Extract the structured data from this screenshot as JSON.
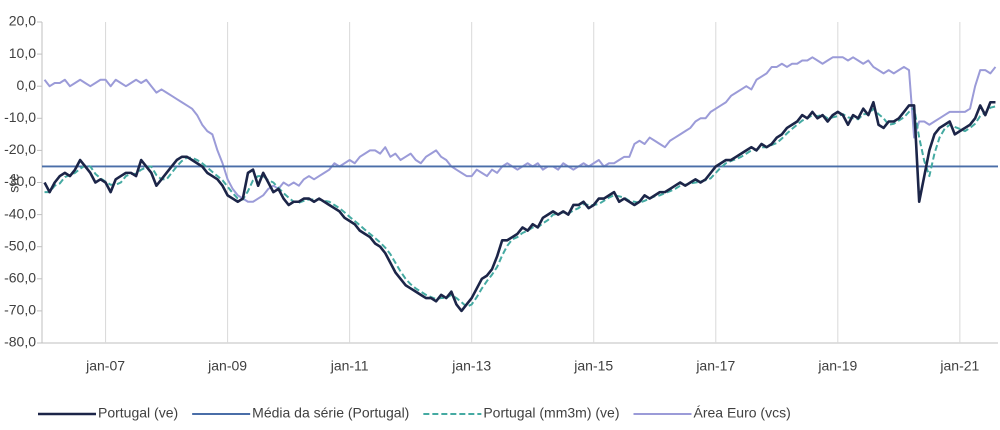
{
  "chart_data": {
    "type": "line",
    "y_label": "sre",
    "ylim": [
      -80,
      20
    ],
    "yticks": [
      {
        "value": -80,
        "label": "-80,0"
      },
      {
        "value": -70,
        "label": "-70,0"
      },
      {
        "value": -60,
        "label": "-60,0"
      },
      {
        "value": -50,
        "label": "-50,0"
      },
      {
        "value": -40,
        "label": "-40,0"
      },
      {
        "value": -30,
        "label": "-30,0"
      },
      {
        "value": -20,
        "label": "-20,0"
      },
      {
        "value": -10,
        "label": "-10,0"
      },
      {
        "value": 0,
        "label": "0,0"
      },
      {
        "value": 10,
        "label": "10,0"
      },
      {
        "value": 20,
        "label": "20,0"
      }
    ],
    "grid": true,
    "legend": "bottom",
    "categories": [
      null,
      null,
      null,
      null,
      null,
      null,
      null,
      null,
      null,
      null,
      null,
      null,
      "jan-07",
      null,
      null,
      null,
      null,
      null,
      null,
      null,
      null,
      null,
      null,
      null,
      null,
      null,
      null,
      null,
      null,
      null,
      null,
      null,
      null,
      null,
      null,
      null,
      "jan-09",
      null,
      null,
      null,
      null,
      null,
      null,
      null,
      null,
      null,
      null,
      null,
      null,
      null,
      null,
      null,
      null,
      null,
      null,
      null,
      null,
      null,
      null,
      null,
      "jan-11",
      null,
      null,
      null,
      null,
      null,
      null,
      null,
      null,
      null,
      null,
      null,
      null,
      null,
      null,
      null,
      null,
      null,
      null,
      null,
      null,
      null,
      null,
      null,
      "jan-13",
      null,
      null,
      null,
      null,
      null,
      null,
      null,
      null,
      null,
      null,
      null,
      null,
      null,
      null,
      null,
      null,
      null,
      null,
      null,
      null,
      null,
      null,
      null,
      "jan-15",
      null,
      null,
      null,
      null,
      null,
      null,
      null,
      null,
      null,
      null,
      null,
      null,
      null,
      null,
      null,
      null,
      null,
      null,
      null,
      null,
      null,
      null,
      null,
      "jan-17",
      null,
      null,
      null,
      null,
      null,
      null,
      null,
      null,
      null,
      null,
      null,
      null,
      null,
      null,
      null,
      null,
      null,
      null,
      null,
      null,
      null,
      null,
      null,
      "jan-19",
      null,
      null,
      null,
      null,
      null,
      null,
      null,
      null,
      null,
      null,
      null,
      null,
      null,
      null,
      null,
      null,
      null,
      null,
      null,
      null,
      null,
      null,
      null,
      "jan-21",
      null,
      null,
      null,
      null,
      null,
      null,
      null
    ],
    "series": [
      {
        "name": "Portugal (ve)",
        "color": "#1c2548",
        "dash": false,
        "values": [
          -30,
          -33,
          -30,
          -28,
          -27,
          -28,
          -26,
          -23,
          -25,
          -27,
          -30,
          -29,
          -30,
          -33,
          -29,
          -28,
          -27,
          -27,
          -28,
          -23,
          -25,
          -27,
          -31,
          -29,
          -27,
          -25,
          -23,
          -22,
          -22,
          -23,
          -24,
          -25,
          -27,
          -28,
          -29,
          -31,
          -34,
          -35,
          -36,
          -35,
          -27,
          -26,
          -31,
          -27,
          -30,
          -33,
          -32,
          -35,
          -37,
          -36,
          -36,
          -35,
          -35,
          -36,
          -35,
          -36,
          -37,
          -38,
          -39,
          -41,
          -42,
          -43,
          -45,
          -46,
          -47,
          -49,
          -50,
          -52,
          -55,
          -58,
          -60,
          -62,
          -63,
          -64,
          -65,
          -66,
          -66,
          -67,
          -65,
          -66,
          -64,
          -68,
          -70,
          -68,
          -66,
          -63,
          -60,
          -59,
          -57,
          -53,
          -48,
          -48,
          -47,
          -46,
          -44,
          -45,
          -43,
          -44,
          -41,
          -40,
          -39,
          -40,
          -39,
          -40,
          -37,
          -37,
          -36,
          -38,
          -37,
          -35,
          -35,
          -34,
          -33,
          -36,
          -35,
          -36,
          -37,
          -36,
          -34,
          -35,
          -34,
          -33,
          -33,
          -32,
          -31,
          -30,
          -31,
          -30,
          -29,
          -30,
          -29,
          -27,
          -25,
          -24,
          -23,
          -23,
          -22,
          -21,
          -20,
          -19,
          -20,
          -18,
          -19,
          -18,
          -16,
          -15,
          -13,
          -12,
          -11,
          -9,
          -10,
          -8,
          -10,
          -9,
          -11,
          -9,
          -8,
          -9,
          -12,
          -9,
          -10,
          -7,
          -9,
          -5,
          -12,
          -13,
          -11,
          -11,
          -10,
          -8,
          -6,
          -6,
          -36,
          -28,
          -20,
          -15,
          -13,
          -12,
          -11,
          -15,
          -14,
          -13,
          -12,
          -10,
          -6,
          -9,
          -5,
          -5
        ]
      },
      {
        "name": "Média da série (Portugal)",
        "color": "#4a6ea8",
        "value": -25
      },
      {
        "name": "Portugal (mm3m) (ve)",
        "color": "#45aaa2",
        "dash": true,
        "values": [
          -33,
          -33,
          -31,
          -30.3,
          -28.3,
          -27.7,
          -27,
          -25.7,
          -24.7,
          -25,
          -27.3,
          -28.7,
          -29.7,
          -30.7,
          -30.7,
          -30,
          -28,
          -27.3,
          -27.3,
          -26,
          -25.3,
          -25,
          -27.7,
          -29,
          -29,
          -27,
          -25,
          -23.3,
          -22.3,
          -22.3,
          -23,
          -24,
          -25.3,
          -26.7,
          -28,
          -29.3,
          -31.3,
          -33.3,
          -35,
          -35.3,
          -32.7,
          -29.3,
          -28,
          -28,
          -29.3,
          -30,
          -31.7,
          -33.3,
          -34.7,
          -36,
          -36.3,
          -35.7,
          -35.3,
          -35.3,
          -35.3,
          -35.7,
          -36,
          -37,
          -38,
          -39.3,
          -40.7,
          -42,
          -43.3,
          -44.7,
          -46,
          -47.3,
          -48.7,
          -50.3,
          -52.3,
          -55,
          -57.7,
          -60,
          -61.7,
          -63,
          -64,
          -65,
          -65.7,
          -66.3,
          -66,
          -66,
          -65,
          -66,
          -67.3,
          -68.7,
          -68,
          -65.7,
          -63,
          -60.7,
          -58.7,
          -56.3,
          -52.7,
          -49.7,
          -47.7,
          -47,
          -45.7,
          -45,
          -44,
          -44,
          -42.7,
          -41.7,
          -40,
          -39.7,
          -39.3,
          -39.7,
          -38.7,
          -38,
          -36.7,
          -37,
          -37,
          -36.7,
          -35.7,
          -34.7,
          -34,
          -34.3,
          -34.7,
          -35.7,
          -36,
          -36.3,
          -35.7,
          -35,
          -34.3,
          -34,
          -33.3,
          -32.7,
          -32,
          -31,
          -30.7,
          -30.3,
          -30,
          -29.7,
          -29.3,
          -28.7,
          -27,
          -25.3,
          -24,
          -23.3,
          -22.7,
          -22,
          -21,
          -20,
          -19.7,
          -19,
          -19,
          -18.3,
          -17.7,
          -16.3,
          -14.7,
          -13.3,
          -12,
          -10.7,
          -10,
          -9,
          -9.3,
          -9,
          -10,
          -9.7,
          -9.3,
          -8.7,
          -9.7,
          -10,
          -10.3,
          -8.7,
          -8.7,
          -7,
          -8.7,
          -10,
          -12,
          -11.7,
          -10.7,
          -9.7,
          -8,
          -6.7,
          -16,
          -23.3,
          -28,
          -21,
          -16,
          -13.3,
          -12,
          -12.7,
          -13.3,
          -14,
          -13,
          -11.7,
          -9.3,
          -8.3,
          -6.7,
          -6.3
        ]
      },
      {
        "name": "Área Euro (vcs)",
        "color": "#9b9bd8",
        "dash": false,
        "values": [
          2,
          0,
          1,
          1,
          2,
          0,
          1,
          2,
          1,
          0,
          1,
          2,
          2,
          0,
          2,
          1,
          0,
          1,
          2,
          1,
          2,
          0,
          -2,
          -1,
          -2,
          -3,
          -4,
          -5,
          -6,
          -7,
          -9,
          -12,
          -14,
          -15,
          -20,
          -24,
          -29,
          -32,
          -34,
          -35,
          -36,
          -36,
          -35,
          -34,
          -32,
          -31,
          -32,
          -30,
          -31,
          -30,
          -31,
          -29,
          -28,
          -29,
          -28,
          -27,
          -26,
          -24,
          -25,
          -24,
          -23,
          -24,
          -22,
          -21,
          -20,
          -20,
          -21,
          -19,
          -22,
          -21,
          -23,
          -22,
          -21,
          -23,
          -24,
          -22,
          -21,
          -20,
          -22,
          -23,
          -25,
          -26,
          -27,
          -28,
          -28,
          -26,
          -27,
          -28,
          -26,
          -27,
          -25,
          -24,
          -25,
          -26,
          -25,
          -24,
          -25,
          -24,
          -26,
          -25,
          -25,
          -26,
          -24,
          -25,
          -26,
          -25,
          -24,
          -25,
          -24,
          -23,
          -25,
          -24,
          -24,
          -23,
          -22,
          -22,
          -18,
          -17,
          -18,
          -16,
          -17,
          -18,
          -19,
          -17,
          -16,
          -15,
          -14,
          -13,
          -11,
          -10,
          -10,
          -8,
          -7,
          -6,
          -5,
          -3,
          -2,
          -1,
          0,
          -1,
          2,
          3,
          4,
          6,
          6,
          7,
          6,
          7,
          7,
          8,
          8,
          9,
          8,
          7,
          8,
          9,
          9,
          9,
          8,
          9,
          8,
          7,
          8,
          6,
          5,
          4,
          5,
          4,
          5,
          6,
          5,
          -16,
          -11,
          -11,
          -12,
          -11,
          -10,
          -9,
          -8,
          -8,
          -8,
          -8,
          -7,
          0,
          5,
          5,
          4,
          6
        ]
      }
    ]
  }
}
